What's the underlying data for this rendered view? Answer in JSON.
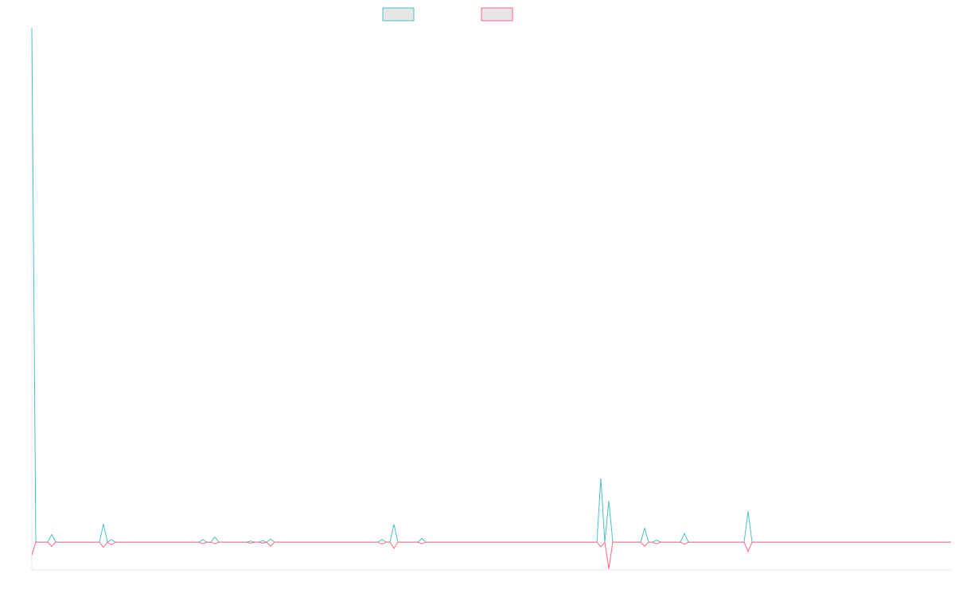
{
  "chart_data": {
    "type": "line",
    "ylim": [
      -5.4,
      100
    ],
    "series": [
      {
        "color": "#4bc0c0",
        "values": [
          100,
          0,
          0,
          0,
          0,
          1.5,
          0,
          0,
          0,
          0,
          0,
          0,
          0,
          0,
          0,
          0,
          0,
          0,
          3.5,
          0,
          0.5,
          0,
          0,
          0,
          0,
          0,
          0,
          0,
          0,
          0,
          0,
          0,
          0,
          0,
          0,
          0,
          0,
          0,
          0,
          0,
          0,
          0,
          0,
          0.5,
          0,
          0,
          1,
          0,
          0,
          0,
          0,
          0,
          0,
          0,
          0,
          0.2,
          0,
          0,
          0.3,
          0,
          0.6,
          0,
          0,
          0,
          0,
          0,
          0,
          0,
          0,
          0,
          0,
          0,
          0,
          0,
          0,
          0,
          0,
          0,
          0,
          0,
          0,
          0,
          0,
          0,
          0,
          0,
          0,
          0,
          0.5,
          0,
          0,
          3.5,
          0,
          0,
          0,
          0,
          0,
          0,
          0.7,
          0,
          0,
          0,
          0,
          0,
          0,
          0,
          0,
          0,
          0,
          0,
          0,
          0,
          0,
          0,
          0,
          0,
          0,
          0,
          0,
          0,
          0,
          0,
          0,
          0,
          0,
          0,
          0,
          0,
          0,
          0,
          0,
          0,
          0,
          0,
          0,
          0,
          0,
          0,
          0,
          0,
          0,
          0,
          0,
          12.4,
          0,
          8,
          0,
          0,
          0,
          0,
          0,
          0,
          0,
          0,
          2.7,
          0,
          0,
          0.4,
          0,
          0,
          0,
          0,
          0,
          0,
          1.7,
          0,
          0,
          0,
          0,
          0,
          0,
          0,
          0,
          0,
          0,
          0,
          0,
          0,
          0,
          0,
          6,
          0,
          0,
          0,
          0,
          0,
          0,
          0,
          0,
          0,
          0,
          0,
          0,
          0,
          0,
          0,
          0,
          0,
          0,
          0,
          0,
          0,
          0,
          0,
          0,
          0,
          0,
          0,
          0,
          0,
          0,
          0,
          0,
          0,
          0,
          0,
          0,
          0,
          0,
          0,
          0,
          0,
          0,
          0,
          0,
          0,
          0,
          0,
          0,
          0,
          0,
          0
        ]
      },
      {
        "color": "#ff6384",
        "values": [
          -2.5,
          0,
          0,
          0,
          0,
          -0.8,
          0,
          0,
          0,
          0,
          0,
          0,
          0,
          0,
          0,
          0,
          0,
          0,
          -1,
          0,
          -0.5,
          0,
          0,
          0,
          0,
          0,
          0,
          0,
          0,
          0,
          0,
          0,
          0,
          0,
          0,
          0,
          0,
          0,
          0,
          0,
          0,
          0,
          0,
          -0.3,
          0,
          0,
          -0.3,
          0,
          0,
          0,
          0,
          0,
          0,
          0,
          0,
          -0.2,
          0,
          0,
          -0.2,
          0,
          -0.8,
          0,
          0,
          0,
          0,
          0,
          0,
          0,
          0,
          0,
          0,
          0,
          0,
          0,
          0,
          0,
          0,
          0,
          0,
          0,
          0,
          0,
          0,
          0,
          0,
          0,
          0,
          0,
          -0.4,
          0,
          0,
          -1.2,
          0,
          0,
          0,
          0,
          0,
          0,
          -0.3,
          0,
          0,
          0,
          0,
          0,
          0,
          0,
          0,
          0,
          0,
          0,
          0,
          0,
          0,
          0,
          0,
          0,
          0,
          0,
          0,
          0,
          0,
          0,
          0,
          0,
          0,
          0,
          0,
          0,
          0,
          0,
          0,
          0,
          0,
          0,
          0,
          0,
          0,
          0,
          0,
          0,
          0,
          0,
          0,
          -0.9,
          0,
          -5.2,
          0,
          0,
          0,
          0,
          0,
          0,
          0,
          0,
          -0.8,
          0,
          0,
          -0.3,
          0,
          0,
          0,
          0,
          0,
          0,
          -0.4,
          0,
          0,
          0,
          0,
          0,
          0,
          0,
          0,
          0,
          0,
          0,
          0,
          0,
          0,
          0,
          -1.8,
          0,
          0,
          0,
          0,
          0,
          0,
          0,
          0,
          0,
          0,
          0,
          0,
          0,
          0,
          0,
          0,
          0,
          0,
          0,
          0,
          0,
          0,
          0,
          0,
          0,
          0,
          0,
          0,
          0,
          0,
          0,
          0,
          0,
          0,
          0,
          0,
          0,
          0,
          0,
          0,
          0,
          0,
          0,
          0,
          0,
          0,
          0,
          0,
          0,
          0,
          0
        ]
      }
    ]
  }
}
